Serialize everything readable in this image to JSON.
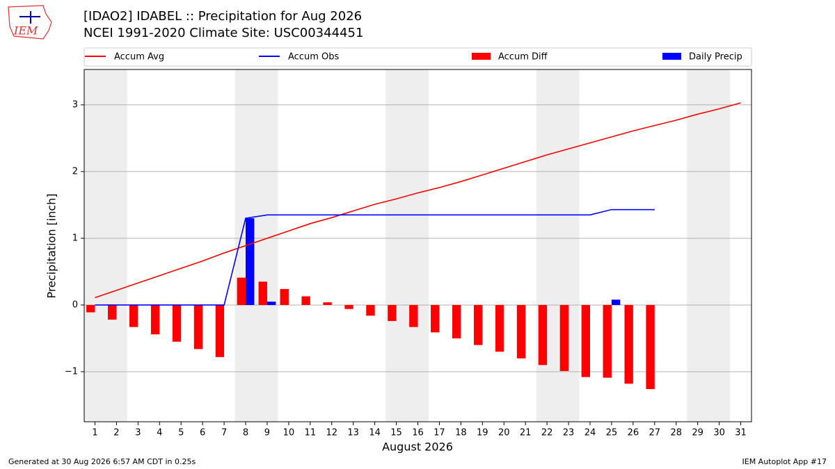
{
  "logo_text": "IEM",
  "chart_data": {
    "type": "line",
    "title": "[IDAO2] IDABEL :: Precipitation for Aug 2026",
    "subtitle": "NCEI 1991-2020 Climate Site: USC00344451",
    "xlabel": "August 2026",
    "ylabel": "Precipitation [inch]",
    "footer_left": "Generated at 30 Aug 2026 6:57 AM CDT in 0.25s",
    "footer_right": "IEM Autoplot App #17",
    "x": [
      1,
      2,
      3,
      4,
      5,
      6,
      7,
      8,
      9,
      10,
      11,
      12,
      13,
      14,
      15,
      16,
      17,
      18,
      19,
      20,
      21,
      22,
      23,
      24,
      25,
      26,
      27,
      28,
      29,
      30,
      31
    ],
    "shaded_days": [
      1,
      2,
      8,
      9,
      15,
      16,
      22,
      23,
      29,
      30
    ],
    "xlim": [
      0.5,
      31.5
    ],
    "xticks": [
      1,
      2,
      3,
      4,
      5,
      6,
      7,
      8,
      9,
      10,
      11,
      12,
      13,
      14,
      15,
      16,
      17,
      18,
      19,
      20,
      21,
      22,
      23,
      24,
      25,
      26,
      27,
      28,
      29,
      30,
      31
    ],
    "ylim": [
      -1.75,
      3.53
    ],
    "yticks": [
      {
        "value": -1,
        "label": "−1"
      },
      0,
      1,
      2,
      3
    ],
    "grid": true,
    "series": [
      {
        "name": "Accum Avg",
        "type": "line",
        "color": "#ff0000",
        "values": [
          0.11,
          0.22,
          0.33,
          0.44,
          0.55,
          0.66,
          0.78,
          0.89,
          1.0,
          1.11,
          1.22,
          1.31,
          1.41,
          1.51,
          1.59,
          1.68,
          1.76,
          1.85,
          1.95,
          2.05,
          2.15,
          2.25,
          2.34,
          2.43,
          2.52,
          2.61,
          2.69,
          2.77,
          2.86,
          2.94,
          3.03
        ]
      },
      {
        "name": "Accum Obs",
        "type": "line",
        "color": "#0000ff",
        "values": [
          0,
          0,
          0,
          0,
          0,
          0,
          0,
          1.3,
          1.35,
          1.35,
          1.35,
          1.35,
          1.35,
          1.35,
          1.35,
          1.35,
          1.35,
          1.35,
          1.35,
          1.35,
          1.35,
          1.35,
          1.35,
          1.35,
          1.43,
          1.43,
          1.43,
          null,
          null,
          null,
          null
        ]
      },
      {
        "name": "Accum Diff",
        "type": "bar",
        "offset": "left",
        "color": "#ff0000",
        "values": [
          -0.11,
          -0.22,
          -0.33,
          -0.44,
          -0.55,
          -0.66,
          -0.78,
          0.41,
          0.35,
          0.24,
          0.13,
          0.04,
          -0.06,
          -0.16,
          -0.24,
          -0.33,
          -0.41,
          -0.5,
          -0.6,
          -0.7,
          -0.8,
          -0.9,
          -0.99,
          -1.08,
          -1.09,
          -1.18,
          -1.26,
          null,
          null,
          null,
          null
        ]
      },
      {
        "name": "Daily Precip",
        "type": "bar",
        "offset": "right",
        "color": "#0000ff",
        "values": [
          0,
          0,
          0,
          0,
          0,
          0,
          0,
          1.3,
          0.05,
          0,
          0,
          0,
          0,
          0,
          0,
          0,
          0,
          0,
          0,
          0,
          0,
          0,
          0,
          0,
          0.08,
          0,
          0,
          null,
          null,
          null,
          null
        ]
      }
    ]
  }
}
